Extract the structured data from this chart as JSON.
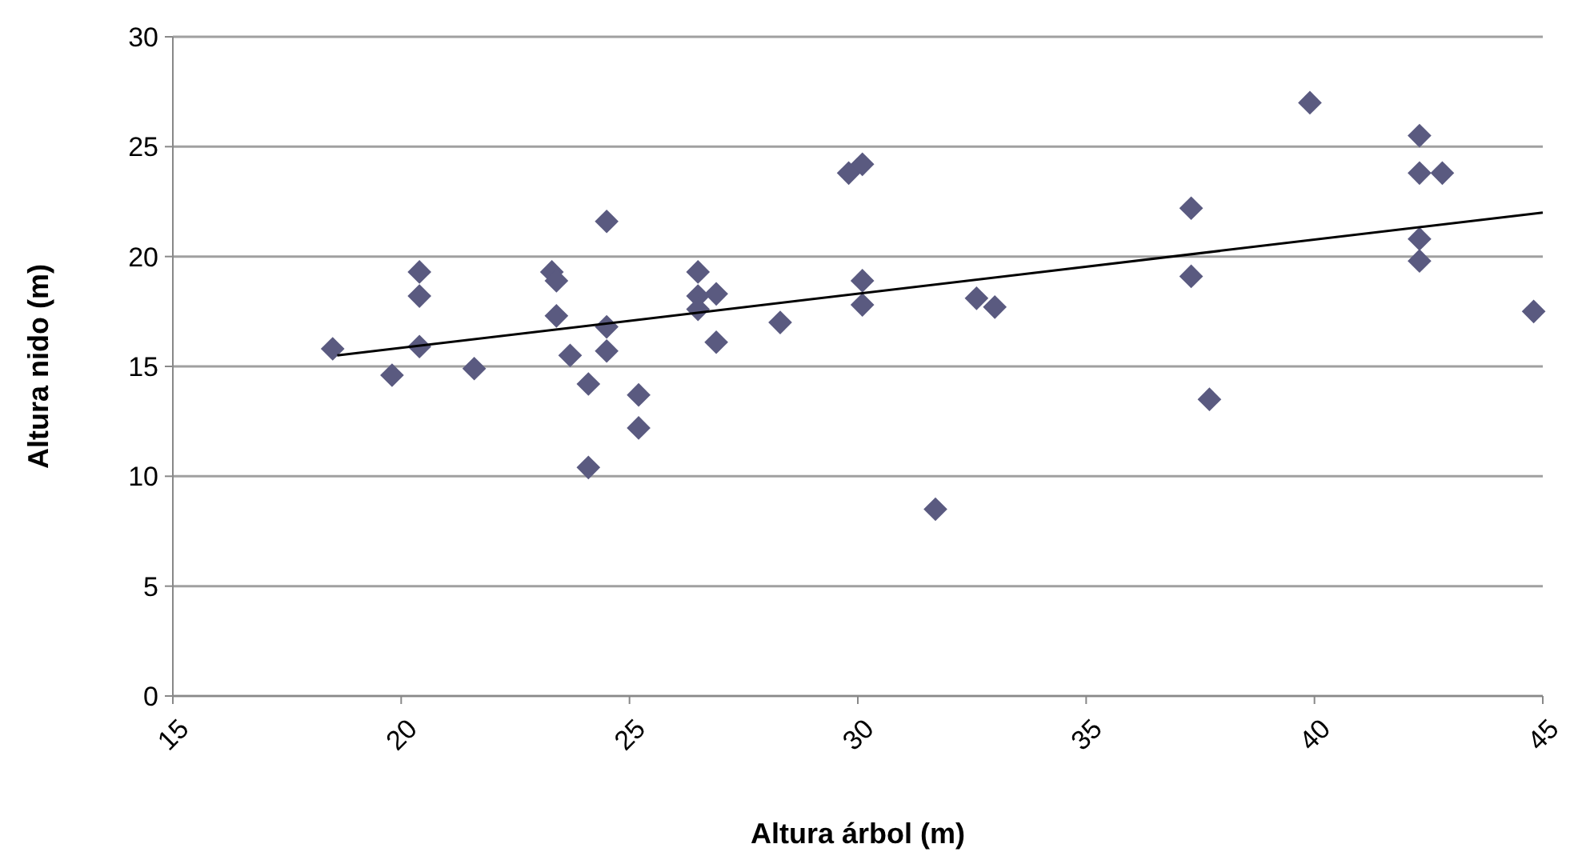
{
  "chart_data": {
    "type": "scatter",
    "xlabel": "Altura árbol (m)",
    "ylabel": "Altura nido (m)",
    "xlim": [
      15,
      45
    ],
    "xticks": [
      15,
      20,
      25,
      30,
      35,
      40,
      45
    ],
    "ylim": [
      0,
      30
    ],
    "yticks": [
      0,
      5,
      10,
      15,
      20,
      25,
      30
    ],
    "grid": "y",
    "series": [
      {
        "color": "#5a5a80",
        "marker": "diamond",
        "x": [
          18.5,
          19.8,
          20.4,
          20.4,
          20.4,
          21.6,
          23.3,
          23.4,
          23.4,
          23.7,
          24.1,
          24.1,
          24.5,
          24.5,
          24.5,
          25.2,
          25.2,
          26.5,
          26.5,
          26.5,
          26.9,
          26.9,
          28.3,
          29.8,
          30.1,
          30.1,
          30.1,
          31.7,
          32.6,
          33.0,
          37.3,
          37.3,
          37.7,
          39.9,
          42.3,
          42.3,
          42.8,
          42.3,
          42.3,
          44.8
        ],
        "values": [
          15.8,
          14.6,
          19.3,
          18.2,
          15.9,
          14.9,
          19.3,
          18.9,
          17.3,
          15.5,
          14.2,
          10.4,
          21.6,
          16.8,
          15.7,
          13.7,
          12.2,
          19.3,
          18.2,
          17.6,
          18.3,
          16.1,
          17.0,
          23.8,
          24.2,
          18.9,
          17.8,
          8.5,
          18.1,
          17.7,
          22.2,
          19.1,
          13.5,
          27.0,
          25.5,
          23.8,
          23.8,
          20.8,
          19.8,
          17.5
        ]
      },
      {
        "type": "line",
        "color": "#000000",
        "marker": "none",
        "x": [
          18.6,
          45
        ],
        "values": [
          15.5,
          22.0
        ]
      }
    ]
  }
}
